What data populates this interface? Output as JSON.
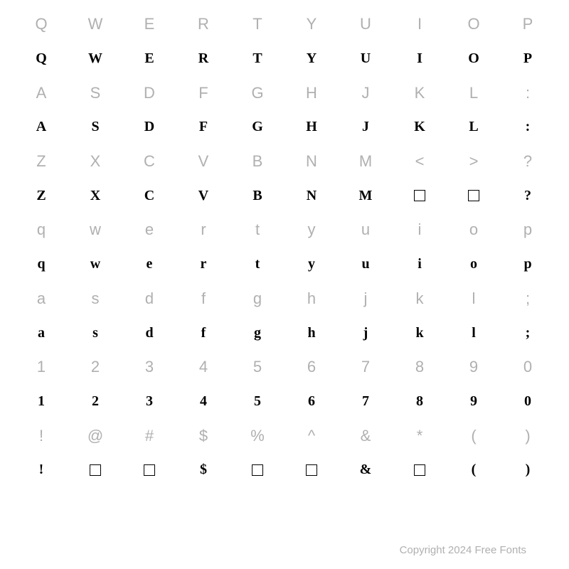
{
  "colors": {
    "label": "#b0b0b0",
    "glyph": "#000000",
    "background": "#ffffff"
  },
  "typography": {
    "label_fontsize": 22,
    "glyph_fontsize": 20,
    "footer_fontsize": 15
  },
  "rows": [
    {
      "type": "label",
      "cells": [
        "Q",
        "W",
        "E",
        "R",
        "T",
        "Y",
        "U",
        "I",
        "O",
        "P"
      ]
    },
    {
      "type": "glyph",
      "cells": [
        "Q",
        "W",
        "E",
        "R",
        "T",
        "Y",
        "U",
        "I",
        "O",
        "P"
      ],
      "boxes": []
    },
    {
      "type": "label",
      "cells": [
        "A",
        "S",
        "D",
        "F",
        "G",
        "H",
        "J",
        "K",
        "L",
        ":"
      ]
    },
    {
      "type": "glyph",
      "cells": [
        "A",
        "S",
        "D",
        "F",
        "G",
        "H",
        "J",
        "K",
        "L",
        ":"
      ],
      "boxes": []
    },
    {
      "type": "label",
      "cells": [
        "Z",
        "X",
        "C",
        "V",
        "B",
        "N",
        "M",
        "<",
        ">",
        "?"
      ]
    },
    {
      "type": "glyph",
      "cells": [
        "Z",
        "X",
        "C",
        "V",
        "B",
        "N",
        "M",
        "",
        "",
        "?"
      ],
      "boxes": [
        7,
        8
      ]
    },
    {
      "type": "label",
      "cells": [
        "q",
        "w",
        "e",
        "r",
        "t",
        "y",
        "u",
        "i",
        "o",
        "p"
      ]
    },
    {
      "type": "glyph",
      "cells": [
        "q",
        "w",
        "e",
        "r",
        "t",
        "y",
        "u",
        "i",
        "o",
        "p"
      ],
      "boxes": []
    },
    {
      "type": "label",
      "cells": [
        "a",
        "s",
        "d",
        "f",
        "g",
        "h",
        "j",
        "k",
        "l",
        ";"
      ]
    },
    {
      "type": "glyph",
      "cells": [
        "a",
        "s",
        "d",
        "f",
        "g",
        "h",
        "j",
        "k",
        "l",
        ";"
      ],
      "boxes": []
    },
    {
      "type": "label",
      "cells": [
        "1",
        "2",
        "3",
        "4",
        "5",
        "6",
        "7",
        "8",
        "9",
        "0"
      ]
    },
    {
      "type": "glyph",
      "cells": [
        "1",
        "2",
        "3",
        "4",
        "5",
        "6",
        "7",
        "8",
        "9",
        "0"
      ],
      "boxes": []
    },
    {
      "type": "label",
      "cells": [
        "!",
        "@",
        "#",
        "$",
        "%",
        "^",
        "&",
        "*",
        "(",
        ")"
      ]
    },
    {
      "type": "glyph",
      "cells": [
        "!",
        "",
        "",
        "$",
        "",
        "",
        "&",
        "",
        "(",
        ")"
      ],
      "boxes": [
        1,
        2,
        4,
        5,
        7
      ]
    }
  ],
  "footer": "Copyright 2024 Free Fonts"
}
